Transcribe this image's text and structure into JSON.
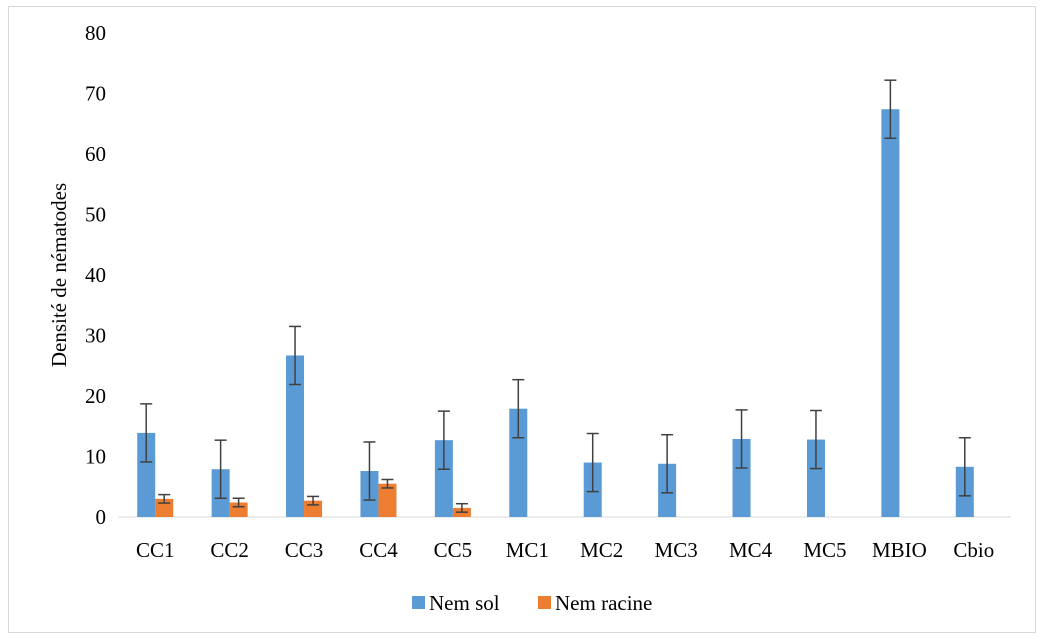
{
  "chart_data": {
    "type": "bar",
    "title": "",
    "xlabel": "",
    "ylabel": "Densité de nématodes",
    "ylim": [
      0,
      80
    ],
    "yticks": [
      "0",
      "10",
      "20",
      "30",
      "40",
      "50",
      "60",
      "70",
      "80"
    ],
    "grid": false,
    "legend_position": "bottom",
    "categories": [
      "CC1",
      "CC2",
      "CC3",
      "CC4",
      "CC5",
      "MC1",
      "MC2",
      "MC3",
      "MC4",
      "MC5",
      "MBIO",
      "Cbio"
    ],
    "series": [
      {
        "name": "Nem sol",
        "color": "#5b9bd5",
        "values": [
          13.9,
          7.9,
          26.7,
          7.6,
          12.7,
          17.9,
          9.0,
          8.8,
          12.9,
          12.8,
          67.4,
          8.3
        ],
        "errors": [
          4.8,
          4.8,
          4.8,
          4.8,
          4.8,
          4.8,
          4.8,
          4.8,
          4.8,
          4.8,
          4.8,
          4.8
        ]
      },
      {
        "name": "Nem racine",
        "color": "#ed7d31",
        "values": [
          3.0,
          2.4,
          2.7,
          5.5,
          1.5,
          null,
          null,
          null,
          null,
          null,
          null,
          null
        ],
        "errors": [
          0.7,
          0.7,
          0.7,
          0.7,
          0.7,
          null,
          null,
          null,
          null,
          null,
          null,
          null
        ]
      }
    ]
  }
}
